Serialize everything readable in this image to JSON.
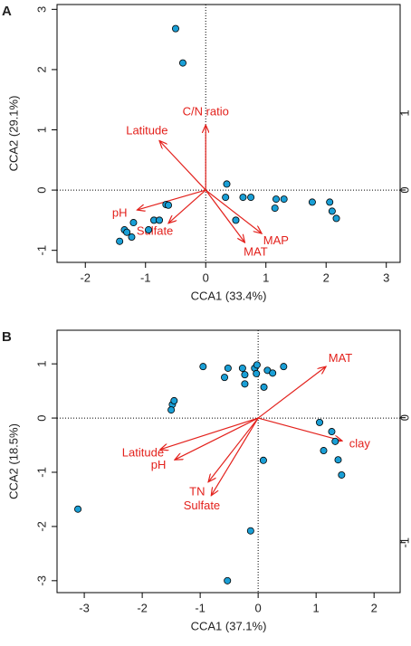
{
  "chart_data": [
    {
      "type": "biplot",
      "panel_label": "A",
      "xlabel": "CCA1 (33.4%)",
      "ylabel": "CCA2 (29.1%)",
      "xlim": [
        -2.47,
        3.23
      ],
      "xticks": [
        -2,
        -1,
        0,
        1,
        2,
        3
      ],
      "ylim": [
        -1.2,
        3.08
      ],
      "yticks": [
        -1,
        0,
        1,
        2,
        3
      ],
      "y2lim": [
        -0.94,
        2.41
      ],
      "y2ticks": [
        0,
        1
      ],
      "zero_lines": true,
      "point_color": "#1a9fd6",
      "x": [
        -0.5,
        -0.38,
        0.35,
        0.33,
        0.62,
        0.75,
        0.5,
        1.17,
        1.15,
        1.3,
        1.77,
        2.06,
        2.1,
        2.17,
        -1.43,
        -1.35,
        -1.31,
        -1.23,
        -1.2,
        -0.95,
        -0.86,
        -0.77,
        -0.66,
        -0.62
      ],
      "y": [
        2.68,
        2.11,
        0.1,
        -0.12,
        -0.12,
        -0.12,
        -0.5,
        -0.15,
        -0.3,
        -0.15,
        -0.2,
        -0.2,
        -0.35,
        -0.47,
        -0.85,
        -0.66,
        -0.7,
        -0.78,
        -0.54,
        -0.66,
        -0.5,
        -0.5,
        -0.24,
        -0.25
      ],
      "vectors": {
        "color": "#e3211c",
        "labels": [
          "C/N ratio",
          "Latitude",
          "pH",
          "Sulfate",
          "MAT",
          "MAP"
        ],
        "x": [
          0,
          -0.77,
          -1.14,
          -0.62,
          0.65,
          0.93
        ],
        "y": [
          1.08,
          0.82,
          -0.33,
          -0.55,
          -0.87,
          -0.72
        ]
      }
    },
    {
      "type": "biplot",
      "panel_label": "B",
      "xlabel": "CCA1 (37.1%)",
      "ylabel": "CCA2 (18.5%)",
      "xlim": [
        -3.47,
        2.45
      ],
      "xticks": [
        -3,
        -2,
        -1,
        0,
        1,
        2
      ],
      "ylim": [
        -3.22,
        1.62
      ],
      "yticks": [
        -3,
        -2,
        -1,
        0,
        1
      ],
      "y2lim": [
        -1.4,
        0.7
      ],
      "y2ticks": [
        -1,
        0
      ],
      "zero_lines": true,
      "point_color": "#1a9fd6",
      "x": [
        -3.11,
        -1.48,
        -1.45,
        -1.5,
        -0.95,
        -0.58,
        -0.52,
        -0.27,
        -0.23,
        -0.23,
        -0.06,
        -0.02,
        -0.03,
        0.16,
        0.25,
        0.1,
        0.44,
        0.09,
        -0.13,
        -0.53,
        1.06,
        1.27,
        1.33,
        1.13,
        1.38,
        1.44
      ],
      "y": [
        -1.68,
        0.25,
        0.32,
        0.15,
        0.95,
        0.75,
        0.92,
        0.92,
        0.8,
        0.63,
        0.92,
        0.98,
        0.82,
        0.88,
        0.83,
        0.57,
        0.95,
        -0.78,
        -2.08,
        -3.0,
        -0.08,
        -0.25,
        -0.43,
        -0.6,
        -0.77,
        -1.05
      ],
      "vectors": {
        "color": "#e3211c",
        "labels": [
          "MAT",
          "clay",
          "Latitude",
          "pH",
          "TN",
          "Sulfate"
        ],
        "x": [
          1.17,
          1.45,
          -1.69,
          -1.44,
          -0.86,
          -0.81
        ],
        "y": [
          0.95,
          -0.42,
          -0.58,
          -0.77,
          -1.18,
          -1.43
        ]
      }
    }
  ]
}
